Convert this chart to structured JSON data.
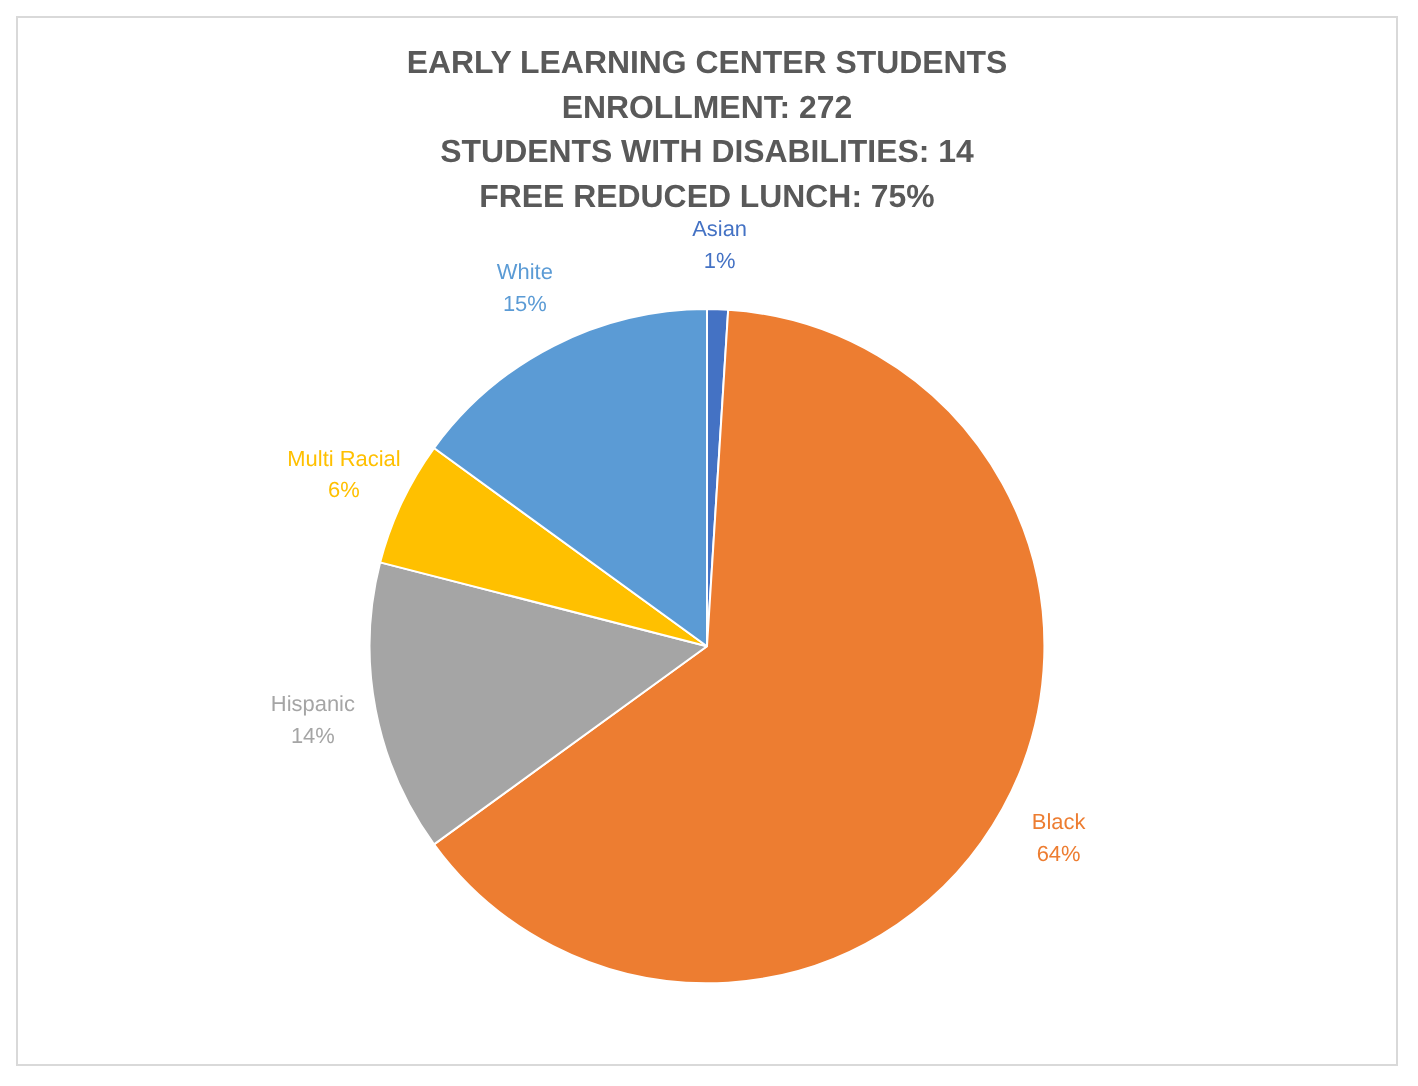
{
  "chart_data": {
    "type": "pie",
    "title": "EARLY LEARNING CENTER STUDENTS\nENROLLMENT: 272\nSTUDENTS WITH DISABILITIES: 14\nFREE REDUCED LUNCH: 75%",
    "categories": [
      "Asian",
      "Black",
      "Hispanic",
      "Multi Racial",
      "White"
    ],
    "values": [
      1,
      64,
      14,
      6,
      15
    ],
    "colors": [
      "#4472c4",
      "#ed7d31",
      "#a5a5a5",
      "#ffc000",
      "#5b9bd5"
    ],
    "value_labels": [
      "1%",
      "64%",
      "14%",
      "6%",
      "15%"
    ],
    "legend": false
  }
}
